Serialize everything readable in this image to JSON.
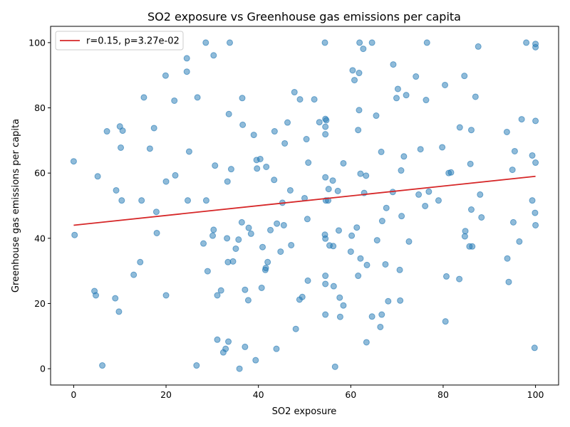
{
  "chart_data": {
    "type": "scatter",
    "title": "SO2 exposure vs Greenhouse gas emissions per capita",
    "xlabel": "SO2 exposure",
    "ylabel": "Greenhouse gas emissions per capita",
    "xlim": [
      -5,
      105
    ],
    "ylim": [
      -5,
      105
    ],
    "xticks": [
      0,
      20,
      40,
      60,
      80,
      100
    ],
    "yticks": [
      0,
      20,
      40,
      60,
      80,
      100
    ],
    "grid": false,
    "legend": {
      "location": "upper left",
      "entries": [
        "r=0.15, p=3.27e-02"
      ]
    },
    "colors": {
      "points": "#1f77b4",
      "fit_line": "#d62728"
    },
    "fit_line": {
      "label": "r=0.15, p=3.27e-02",
      "x": [
        0,
        100
      ],
      "y": [
        44.0,
        59.0
      ]
    },
    "points": [
      [
        0,
        63.6
      ],
      [
        0.2,
        41.0
      ],
      [
        4.5,
        23.8
      ],
      [
        4.8,
        22.5
      ],
      [
        5.2,
        59.0
      ],
      [
        6.2,
        1.0
      ],
      [
        7.2,
        72.8
      ],
      [
        9.0,
        21.6
      ],
      [
        9.2,
        54.7
      ],
      [
        9.8,
        17.5
      ],
      [
        10.0,
        74.3
      ],
      [
        10.2,
        67.8
      ],
      [
        10.4,
        51.6
      ],
      [
        10.6,
        73.0
      ],
      [
        13.0,
        28.8
      ],
      [
        14.4,
        32.7
      ],
      [
        14.7,
        51.6
      ],
      [
        15.2,
        83.2
      ],
      [
        16.5,
        67.5
      ],
      [
        17.4,
        73.8
      ],
      [
        17.9,
        48.1
      ],
      [
        18.0,
        41.6
      ],
      [
        19.9,
        89.9
      ],
      [
        20.0,
        57.4
      ],
      [
        20.0,
        22.5
      ],
      [
        21.8,
        82.2
      ],
      [
        22.0,
        59.3
      ],
      [
        24.5,
        95.2
      ],
      [
        24.5,
        91.1
      ],
      [
        24.7,
        51.6
      ],
      [
        25.0,
        66.6
      ],
      [
        26.6,
        1.0
      ],
      [
        26.8,
        83.2
      ],
      [
        28.1,
        38.4
      ],
      [
        28.6,
        100.0
      ],
      [
        28.7,
        51.6
      ],
      [
        29.0,
        29.9
      ],
      [
        30.1,
        40.8
      ],
      [
        30.3,
        42.6
      ],
      [
        30.3,
        96.1
      ],
      [
        30.6,
        62.3
      ],
      [
        31.1,
        22.5
      ],
      [
        31.1,
        8.9
      ],
      [
        31.9,
        24.0
      ],
      [
        32.4,
        5.0
      ],
      [
        32.9,
        6.1
      ],
      [
        33.2,
        40.0
      ],
      [
        33.3,
        57.4
      ],
      [
        33.4,
        32.7
      ],
      [
        33.5,
        8.3
      ],
      [
        33.6,
        78.1
      ],
      [
        33.8,
        100.0
      ],
      [
        34.1,
        61.2
      ],
      [
        34.5,
        32.9
      ],
      [
        35.1,
        36.8
      ],
      [
        35.7,
        39.6
      ],
      [
        35.9,
        0.0
      ],
      [
        36.4,
        44.9
      ],
      [
        36.5,
        83.0
      ],
      [
        36.6,
        74.8
      ],
      [
        37.1,
        24.2
      ],
      [
        37.1,
        6.7
      ],
      [
        37.8,
        21.0
      ],
      [
        37.9,
        43.2
      ],
      [
        38.4,
        41.4
      ],
      [
        39.0,
        71.7
      ],
      [
        39.4,
        2.6
      ],
      [
        39.6,
        64.0
      ],
      [
        39.7,
        61.4
      ],
      [
        40.4,
        64.3
      ],
      [
        40.7,
        24.8
      ],
      [
        40.9,
        37.3
      ],
      [
        41.5,
        30.3
      ],
      [
        41.6,
        30.9
      ],
      [
        41.7,
        61.9
      ],
      [
        42.0,
        32.7
      ],
      [
        42.6,
        42.5
      ],
      [
        43.4,
        57.9
      ],
      [
        43.5,
        72.8
      ],
      [
        43.9,
        6.1
      ],
      [
        44.0,
        44.5
      ],
      [
        44.8,
        35.9
      ],
      [
        45.2,
        50.9
      ],
      [
        45.5,
        44.0
      ],
      [
        45.7,
        69.1
      ],
      [
        46.3,
        75.5
      ],
      [
        46.9,
        54.7
      ],
      [
        47.1,
        37.9
      ],
      [
        47.8,
        84.8
      ],
      [
        48.1,
        12.2
      ],
      [
        48.9,
        21.2
      ],
      [
        49.0,
        82.6
      ],
      [
        49.5,
        22.0
      ],
      [
        50.0,
        52.3
      ],
      [
        50.4,
        70.4
      ],
      [
        50.6,
        45.9
      ],
      [
        50.7,
        27.0
      ],
      [
        50.8,
        63.2
      ],
      [
        52.1,
        82.6
      ],
      [
        53.2,
        75.6
      ],
      [
        54.4,
        100.0
      ],
      [
        54.4,
        41.1
      ],
      [
        54.5,
        39.9
      ],
      [
        54.5,
        28.5
      ],
      [
        54.5,
        26.0
      ],
      [
        54.5,
        16.6
      ],
      [
        54.5,
        71.9
      ],
      [
        54.5,
        58.7
      ],
      [
        54.5,
        74.2
      ],
      [
        54.5,
        76.6
      ],
      [
        54.6,
        51.6
      ],
      [
        54.7,
        76.2
      ],
      [
        55.1,
        51.6
      ],
      [
        55.2,
        55.1
      ],
      [
        55.4,
        37.8
      ],
      [
        56.1,
        57.7
      ],
      [
        56.2,
        37.6
      ],
      [
        56.3,
        25.3
      ],
      [
        56.6,
        0.6
      ],
      [
        57.2,
        54.5
      ],
      [
        57.4,
        42.4
      ],
      [
        57.6,
        21.8
      ],
      [
        57.7,
        15.9
      ],
      [
        58.4,
        63.0
      ],
      [
        58.4,
        19.4
      ],
      [
        60.0,
        35.9
      ],
      [
        60.2,
        40.8
      ],
      [
        60.4,
        91.5
      ],
      [
        60.8,
        88.5
      ],
      [
        61.3,
        43.3
      ],
      [
        61.6,
        73.2
      ],
      [
        61.6,
        28.5
      ],
      [
        61.8,
        90.7
      ],
      [
        61.8,
        79.3
      ],
      [
        61.9,
        100.0
      ],
      [
        62.1,
        59.8
      ],
      [
        62.1,
        33.8
      ],
      [
        62.7,
        98.1
      ],
      [
        62.9,
        53.9
      ],
      [
        63.3,
        59.2
      ],
      [
        63.4,
        8.1
      ],
      [
        63.5,
        31.8
      ],
      [
        64.6,
        16.0
      ],
      [
        64.6,
        100.0
      ],
      [
        65.5,
        77.6
      ],
      [
        65.7,
        39.4
      ],
      [
        66.4,
        12.8
      ],
      [
        66.6,
        66.5
      ],
      [
        66.7,
        16.6
      ],
      [
        66.8,
        45.3
      ],
      [
        67.5,
        32.0
      ],
      [
        67.7,
        49.3
      ],
      [
        68.1,
        20.7
      ],
      [
        69.1,
        54.2
      ],
      [
        69.2,
        93.3
      ],
      [
        69.9,
        83.0
      ],
      [
        70.2,
        85.8
      ],
      [
        70.6,
        30.3
      ],
      [
        70.7,
        20.9
      ],
      [
        70.9,
        60.8
      ],
      [
        71.0,
        46.8
      ],
      [
        71.5,
        65.1
      ],
      [
        72.0,
        83.9
      ],
      [
        72.6,
        39.0
      ],
      [
        74.1,
        89.6
      ],
      [
        74.7,
        53.4
      ],
      [
        75.1,
        67.3
      ],
      [
        76.1,
        49.9
      ],
      [
        76.3,
        82.4
      ],
      [
        76.5,
        100.0
      ],
      [
        76.9,
        54.3
      ],
      [
        79.0,
        51.6
      ],
      [
        79.8,
        67.9
      ],
      [
        80.4,
        87.0
      ],
      [
        80.5,
        14.5
      ],
      [
        80.7,
        28.3
      ],
      [
        81.2,
        60.0
      ],
      [
        81.7,
        60.2
      ],
      [
        83.5,
        27.5
      ],
      [
        83.6,
        74.0
      ],
      [
        84.6,
        89.8
      ],
      [
        84.7,
        40.6
      ],
      [
        84.8,
        42.2
      ],
      [
        85.7,
        37.5
      ],
      [
        85.9,
        62.8
      ],
      [
        86.1,
        73.2
      ],
      [
        86.1,
        48.8
      ],
      [
        86.3,
        37.5
      ],
      [
        87.0,
        83.4
      ],
      [
        87.6,
        98.8
      ],
      [
        88.0,
        53.4
      ],
      [
        88.3,
        46.4
      ],
      [
        93.8,
        72.6
      ],
      [
        93.9,
        33.8
      ],
      [
        94.2,
        26.6
      ],
      [
        95.0,
        61.0
      ],
      [
        95.2,
        44.9
      ],
      [
        95.5,
        66.7
      ],
      [
        96.5,
        39.0
      ],
      [
        97.0,
        76.5
      ],
      [
        98.0,
        100.0
      ],
      [
        99.3,
        65.4
      ],
      [
        99.3,
        51.6
      ],
      [
        99.8,
        6.4
      ],
      [
        99.9,
        47.8
      ],
      [
        100.0,
        44.0
      ],
      [
        100.0,
        63.2
      ],
      [
        100.0,
        76.0
      ],
      [
        100.0,
        98.6
      ],
      [
        100.0,
        99.6
      ]
    ]
  }
}
